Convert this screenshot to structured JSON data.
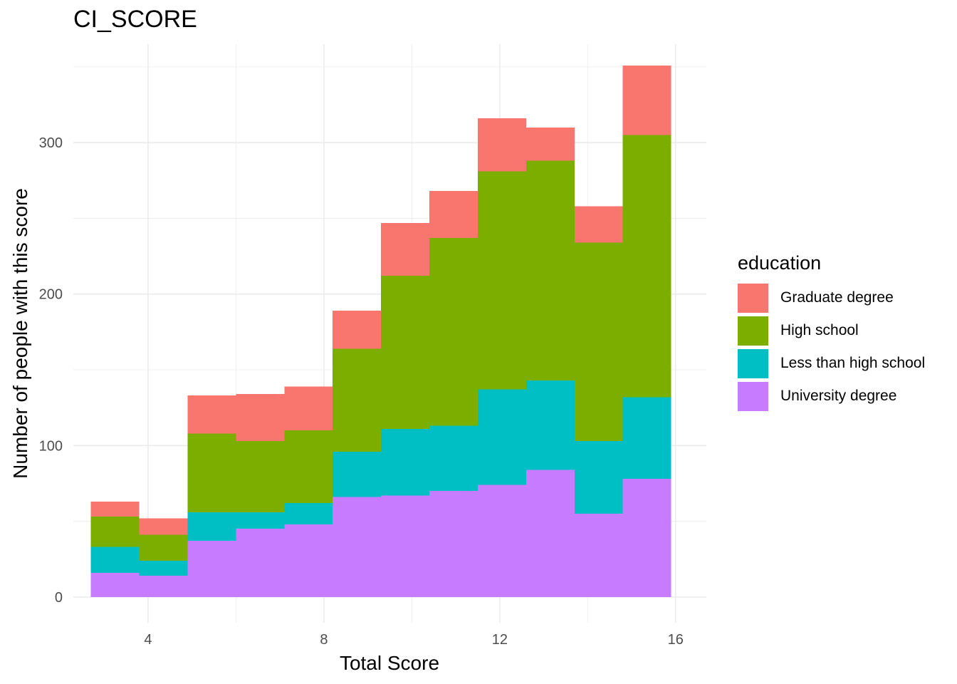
{
  "chart_data": {
    "type": "bar",
    "stacked": true,
    "title": "CI_SCORE",
    "xlabel": "Total Score",
    "ylabel": "Number of people with this score",
    "xlim": [
      2.3,
      16.7
    ],
    "ylim": [
      -17,
      365
    ],
    "x_ticks": [
      4,
      8,
      12,
      16
    ],
    "y_ticks": [
      0,
      100,
      200,
      300
    ],
    "grid": true,
    "bin_edges": [
      2.7,
      3.8,
      4.9,
      6.0,
      7.1,
      8.2,
      9.3,
      10.4,
      11.5,
      12.6,
      13.7,
      14.8,
      15.9
    ],
    "legend_title": "education",
    "legend_position": "right",
    "series": [
      {
        "name": "Graduate degree",
        "color": "#F8766D",
        "values": [
          10,
          11,
          25,
          31,
          29,
          25,
          35,
          31,
          35,
          22,
          24,
          46
        ]
      },
      {
        "name": "High school",
        "color": "#7CAE00",
        "values": [
          20,
          17,
          52,
          47,
          48,
          68,
          101,
          124,
          144,
          145,
          131,
          173
        ]
      },
      {
        "name": "Less than high school",
        "color": "#00BFC4",
        "values": [
          17,
          10,
          19,
          11,
          14,
          30,
          44,
          43,
          63,
          59,
          48,
          54
        ]
      },
      {
        "name": "University degree",
        "color": "#C77CFF",
        "values": [
          16,
          14,
          37,
          45,
          48,
          66,
          67,
          70,
          74,
          84,
          55,
          78
        ]
      }
    ]
  }
}
